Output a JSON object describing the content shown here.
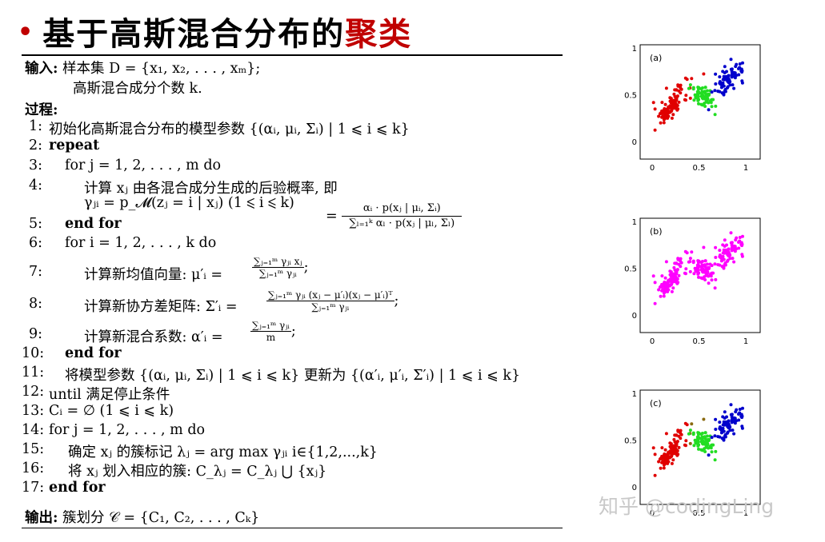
{
  "title": {
    "bullet": "•",
    "main": "基于高斯混合分布的",
    "highlight": "聚类"
  },
  "algorithm": {
    "input_label": "输入:",
    "input_line1": "样本集 D = {x₁, x₂, . . . , xₘ};",
    "input_line2": "高斯混合成分个数 k.",
    "process_label": "过程:",
    "lines": [
      {
        "num": "1:",
        "text": "初始化高斯混合分布的模型参数 {(αᵢ, μᵢ, Σᵢ) | 1 ⩽ i ⩽ k}"
      },
      {
        "num": "2:",
        "text": "repeat"
      },
      {
        "num": "3:",
        "text": "for j = 1, 2, . . . , m  do"
      },
      {
        "num": "4:",
        "text": "计算 xⱼ 由各混合成分生成的后验概率, 即"
      },
      {
        "num": "",
        "text": "γⱼᵢ = p_𝓜(zⱼ = i | xⱼ) (1 ⩽ i ⩽ k)"
      },
      {
        "num": "5:",
        "text": "end for"
      },
      {
        "num": "6:",
        "text": "for i = 1, 2, . . . , k  do"
      },
      {
        "num": "7:",
        "text": "计算新均值向量: μ′ᵢ ="
      },
      {
        "num": "8:",
        "text": "计算新协方差矩阵: Σ′ᵢ ="
      },
      {
        "num": "9:",
        "text": "计算新混合系数: α′ᵢ ="
      },
      {
        "num": "10:",
        "text": "end for"
      },
      {
        "num": "11:",
        "text": "将模型参数 {(αᵢ, μᵢ, Σᵢ) | 1 ⩽ i ⩽ k} 更新为 {(α′ᵢ, μ′ᵢ, Σ′ᵢ) | 1 ⩽ i ⩽ k}"
      },
      {
        "num": "12:",
        "text": "until 满足停止条件"
      },
      {
        "num": "13:",
        "text": "Cᵢ = ∅ (1 ⩽ i ⩽ k)"
      },
      {
        "num": "14:",
        "text": "for j = 1, 2, . . . , m  do"
      },
      {
        "num": "15:",
        "text": "确定 xⱼ 的簇标记 λⱼ =  arg max  γⱼᵢ  i∈{1,2,...,k}"
      },
      {
        "num": "16:",
        "text": "将 xⱼ 划入相应的簇: C_λⱼ = C_λⱼ ⋃ {xⱼ}"
      },
      {
        "num": "17:",
        "text": "end for"
      }
    ],
    "posterior_num": "αᵢ · p(xⱼ | μᵢ, Σᵢ)",
    "posterior_den": "∑ₗ₌₁ᵏ αₗ · p(xⱼ | μₗ, Σₗ)",
    "posterior_eq": "=",
    "mean_num": "∑ⱼ₌₁ᵐ γⱼᵢ xⱼ",
    "mean_den": "∑ⱼ₌₁ᵐ γⱼᵢ",
    "cov_num": "∑ⱼ₌₁ᵐ γⱼᵢ (xⱼ − μ′ᵢ)(xⱼ − μ′ᵢ)ᵀ",
    "cov_den": "∑ⱼ₌₁ᵐ γⱼᵢ",
    "alpha_num": "∑ⱼ₌₁ᵐ γⱼᵢ",
    "alpha_den": "m",
    "output_label": "输出:",
    "output_text": "簇划分 𝒞 = {C₁, C₂, . . . , Cₖ}"
  },
  "plots": [
    {
      "label": "(a)",
      "yticks": [
        "0",
        "0.5",
        "1"
      ],
      "xticks": [
        "0",
        "0.5",
        "1"
      ]
    },
    {
      "label": "(b)",
      "yticks": [
        "0",
        "0.5",
        "1"
      ],
      "xticks": [
        "0",
        "0.5",
        "1"
      ]
    },
    {
      "label": "(c)",
      "yticks": [
        "0",
        "0.5",
        "1"
      ],
      "xticks": [
        "0",
        "0.5",
        "1"
      ]
    }
  ],
  "colors": {
    "red": "#e00000",
    "green": "#22dd22",
    "blue": "#0000cc",
    "magenta": "#ff00ff",
    "title_highlight": "#c00000"
  },
  "watermark": "知乎 @codingLing"
}
